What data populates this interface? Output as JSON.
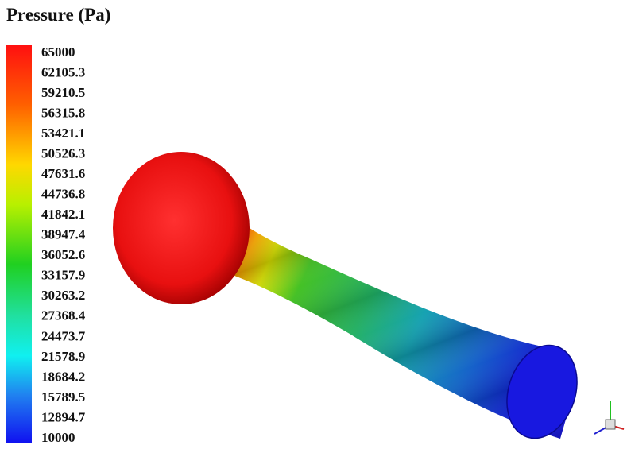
{
  "legend": {
    "title": "Pressure (Pa)",
    "labels": [
      "65000",
      "62105.3",
      "59210.5",
      "56315.8",
      "53421.1",
      "50526.3",
      "47631.6",
      "44736.8",
      "41842.1",
      "38947.4",
      "36052.6",
      "33157.9",
      "30263.2",
      "27368.4",
      "24473.7",
      "21578.9",
      "18684.2",
      "15789.5",
      "12894.7",
      "10000"
    ]
  }
}
